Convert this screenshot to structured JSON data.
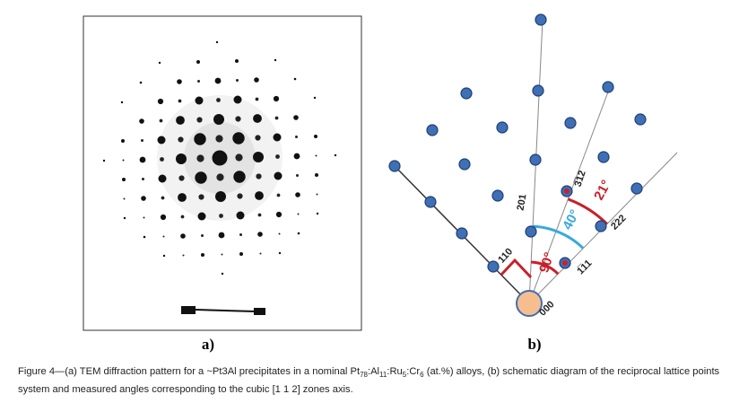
{
  "panel_a": {
    "label": "a)"
  },
  "panel_b": {
    "label": "b)",
    "spot_labels": [
      "110",
      "201",
      "3̅12",
      "2̅22",
      "1̅11",
      "000"
    ],
    "angles": [
      "90°",
      "40°",
      "21°"
    ]
  },
  "caption": {
    "parts": [
      "Figure 4—(a) TEM diffraction pattern for a ~Pt3Al precipitates in a nominal Pt",
      "78",
      ":Al",
      "11",
      ":Ru",
      "5",
      ":Cr",
      "6",
      " (at.%) alloys, (b) schematic diagram of the reciprocal lattice points system and measured angles corresponding to the cubic [1 1 2] zones axis."
    ]
  }
}
